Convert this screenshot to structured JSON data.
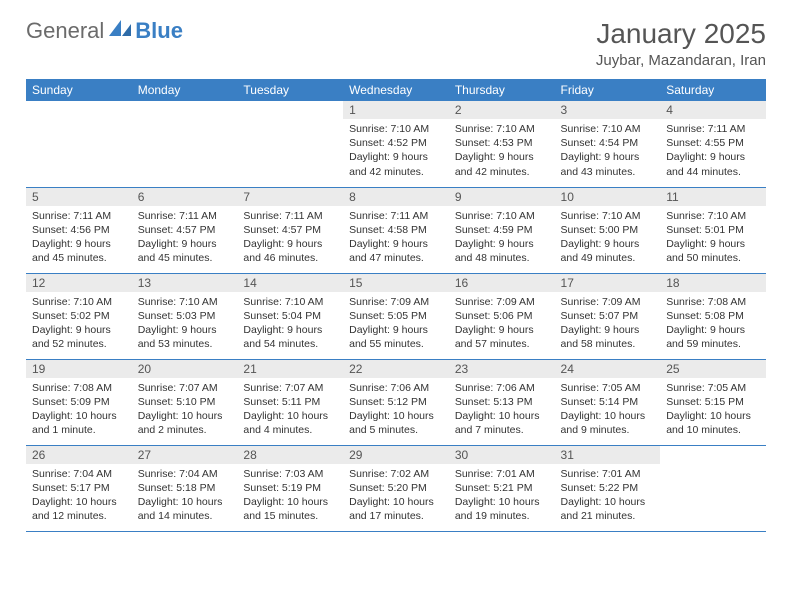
{
  "logo": {
    "part1": "General",
    "part2": "Blue"
  },
  "title": "January 2025",
  "location": "Juybar, Mazandaran, Iran",
  "colors": {
    "header_bg": "#3a7fc4",
    "header_text": "#ffffff",
    "daynum_bg": "#ebebeb",
    "cell_border": "#3a7fc4",
    "body_text": "#333333",
    "title_text": "#555555"
  },
  "weekdays": [
    "Sunday",
    "Monday",
    "Tuesday",
    "Wednesday",
    "Thursday",
    "Friday",
    "Saturday"
  ],
  "weeks": [
    [
      {
        "blank": true
      },
      {
        "blank": true
      },
      {
        "blank": true
      },
      {
        "day": "1",
        "sunrise": "7:10 AM",
        "sunset": "4:52 PM",
        "daylight": "9 hours and 42 minutes."
      },
      {
        "day": "2",
        "sunrise": "7:10 AM",
        "sunset": "4:53 PM",
        "daylight": "9 hours and 42 minutes."
      },
      {
        "day": "3",
        "sunrise": "7:10 AM",
        "sunset": "4:54 PM",
        "daylight": "9 hours and 43 minutes."
      },
      {
        "day": "4",
        "sunrise": "7:11 AM",
        "sunset": "4:55 PM",
        "daylight": "9 hours and 44 minutes."
      }
    ],
    [
      {
        "day": "5",
        "sunrise": "7:11 AM",
        "sunset": "4:56 PM",
        "daylight": "9 hours and 45 minutes."
      },
      {
        "day": "6",
        "sunrise": "7:11 AM",
        "sunset": "4:57 PM",
        "daylight": "9 hours and 45 minutes."
      },
      {
        "day": "7",
        "sunrise": "7:11 AM",
        "sunset": "4:57 PM",
        "daylight": "9 hours and 46 minutes."
      },
      {
        "day": "8",
        "sunrise": "7:11 AM",
        "sunset": "4:58 PM",
        "daylight": "9 hours and 47 minutes."
      },
      {
        "day": "9",
        "sunrise": "7:10 AM",
        "sunset": "4:59 PM",
        "daylight": "9 hours and 48 minutes."
      },
      {
        "day": "10",
        "sunrise": "7:10 AM",
        "sunset": "5:00 PM",
        "daylight": "9 hours and 49 minutes."
      },
      {
        "day": "11",
        "sunrise": "7:10 AM",
        "sunset": "5:01 PM",
        "daylight": "9 hours and 50 minutes."
      }
    ],
    [
      {
        "day": "12",
        "sunrise": "7:10 AM",
        "sunset": "5:02 PM",
        "daylight": "9 hours and 52 minutes."
      },
      {
        "day": "13",
        "sunrise": "7:10 AM",
        "sunset": "5:03 PM",
        "daylight": "9 hours and 53 minutes."
      },
      {
        "day": "14",
        "sunrise": "7:10 AM",
        "sunset": "5:04 PM",
        "daylight": "9 hours and 54 minutes."
      },
      {
        "day": "15",
        "sunrise": "7:09 AM",
        "sunset": "5:05 PM",
        "daylight": "9 hours and 55 minutes."
      },
      {
        "day": "16",
        "sunrise": "7:09 AM",
        "sunset": "5:06 PM",
        "daylight": "9 hours and 57 minutes."
      },
      {
        "day": "17",
        "sunrise": "7:09 AM",
        "sunset": "5:07 PM",
        "daylight": "9 hours and 58 minutes."
      },
      {
        "day": "18",
        "sunrise": "7:08 AM",
        "sunset": "5:08 PM",
        "daylight": "9 hours and 59 minutes."
      }
    ],
    [
      {
        "day": "19",
        "sunrise": "7:08 AM",
        "sunset": "5:09 PM",
        "daylight": "10 hours and 1 minute."
      },
      {
        "day": "20",
        "sunrise": "7:07 AM",
        "sunset": "5:10 PM",
        "daylight": "10 hours and 2 minutes."
      },
      {
        "day": "21",
        "sunrise": "7:07 AM",
        "sunset": "5:11 PM",
        "daylight": "10 hours and 4 minutes."
      },
      {
        "day": "22",
        "sunrise": "7:06 AM",
        "sunset": "5:12 PM",
        "daylight": "10 hours and 5 minutes."
      },
      {
        "day": "23",
        "sunrise": "7:06 AM",
        "sunset": "5:13 PM",
        "daylight": "10 hours and 7 minutes."
      },
      {
        "day": "24",
        "sunrise": "7:05 AM",
        "sunset": "5:14 PM",
        "daylight": "10 hours and 9 minutes."
      },
      {
        "day": "25",
        "sunrise": "7:05 AM",
        "sunset": "5:15 PM",
        "daylight": "10 hours and 10 minutes."
      }
    ],
    [
      {
        "day": "26",
        "sunrise": "7:04 AM",
        "sunset": "5:17 PM",
        "daylight": "10 hours and 12 minutes."
      },
      {
        "day": "27",
        "sunrise": "7:04 AM",
        "sunset": "5:18 PM",
        "daylight": "10 hours and 14 minutes."
      },
      {
        "day": "28",
        "sunrise": "7:03 AM",
        "sunset": "5:19 PM",
        "daylight": "10 hours and 15 minutes."
      },
      {
        "day": "29",
        "sunrise": "7:02 AM",
        "sunset": "5:20 PM",
        "daylight": "10 hours and 17 minutes."
      },
      {
        "day": "30",
        "sunrise": "7:01 AM",
        "sunset": "5:21 PM",
        "daylight": "10 hours and 19 minutes."
      },
      {
        "day": "31",
        "sunrise": "7:01 AM",
        "sunset": "5:22 PM",
        "daylight": "10 hours and 21 minutes."
      },
      {
        "blank": true
      }
    ]
  ],
  "labels": {
    "sunrise": "Sunrise:",
    "sunset": "Sunset:",
    "daylight": "Daylight:"
  }
}
